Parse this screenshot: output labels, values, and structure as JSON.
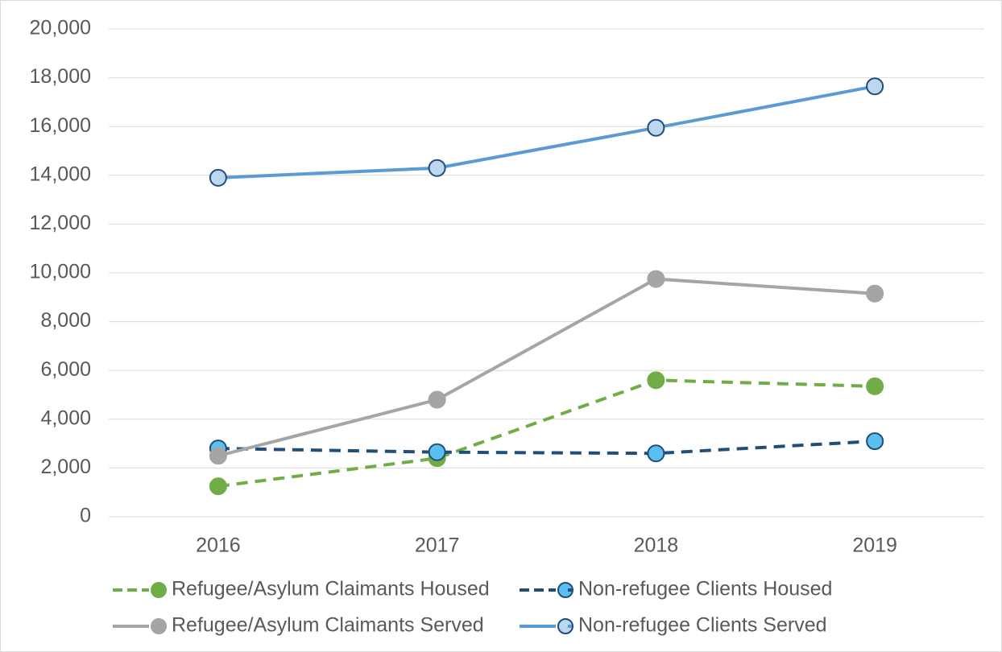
{
  "chart_data": {
    "type": "line",
    "categories": [
      "2016",
      "2017",
      "2018",
      "2019"
    ],
    "ylim": [
      0,
      20000
    ],
    "yticks": [
      0,
      {
        "value": 2000,
        "label": "2,000"
      },
      {
        "value": 4000,
        "label": "4,000"
      },
      {
        "value": 6000,
        "label": "6,000"
      },
      {
        "value": 8000,
        "label": "8,000"
      },
      {
        "value": 10000,
        "label": "10,000"
      },
      {
        "value": 12000,
        "label": "12,000"
      },
      {
        "value": 14000,
        "label": "14,000"
      },
      {
        "value": 16000,
        "label": "16,000"
      },
      {
        "value": 18000,
        "label": "18,000"
      },
      {
        "value": 20000,
        "label": "20,000"
      }
    ],
    "grid": true,
    "legend": "bottom",
    "series": [
      {
        "name": "Refugee/Asylum Claimants Housed",
        "color": "#70ad47",
        "dashed": true,
        "marker_fill": "#70ad47",
        "marker_edge": "#70ad47",
        "values": [
          1250,
          2400,
          5600,
          5350
        ]
      },
      {
        "name": "Non-refugee Clients Housed",
        "color": "#1f4e79",
        "dashed": true,
        "marker_fill": "#5bc0f0",
        "marker_edge": "#1f4e79",
        "values": [
          2800,
          2650,
          2600,
          3100
        ]
      },
      {
        "name": "Refugee/Asylum Claimants Served",
        "color": "#a5a5a5",
        "dashed": false,
        "marker_fill": "#a5a5a5",
        "marker_edge": "#a5a5a5",
        "values": [
          2500,
          4800,
          9750,
          9150
        ]
      },
      {
        "name": "Non-refugee Clients Served",
        "color": "#5b9bd5",
        "dashed": false,
        "marker_fill": "#bdd7ee",
        "marker_edge": "#1f4e79",
        "values": [
          13900,
          14300,
          15950,
          17650
        ]
      }
    ]
  }
}
